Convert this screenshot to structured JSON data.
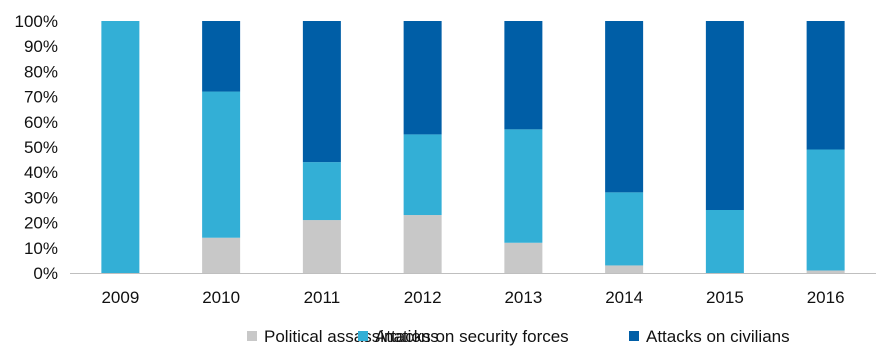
{
  "chart_data": {
    "type": "bar",
    "stacked": true,
    "normalized": true,
    "categories": [
      "2009",
      "2010",
      "2011",
      "2012",
      "2013",
      "2014",
      "2015",
      "2016"
    ],
    "series": [
      {
        "name": "Political assassinations",
        "color": "#c8c8c8",
        "values": [
          0,
          14,
          21,
          23,
          12,
          3,
          0,
          1
        ]
      },
      {
        "name": "Attacks on security forces",
        "color": "#33afd6",
        "values": [
          100,
          58,
          23,
          32,
          45,
          29,
          25,
          48
        ]
      },
      {
        "name": "Attacks on civilians",
        "color": "#005ea6",
        "values": [
          0,
          28,
          56,
          45,
          43,
          68,
          75,
          51
        ]
      }
    ],
    "yticks": [
      "0%",
      "10%",
      "20%",
      "30%",
      "40%",
      "50%",
      "60%",
      "70%",
      "80%",
      "90%",
      "100%"
    ],
    "ylim": [
      0,
      100
    ],
    "grid": false,
    "legend_position": "bottom"
  }
}
